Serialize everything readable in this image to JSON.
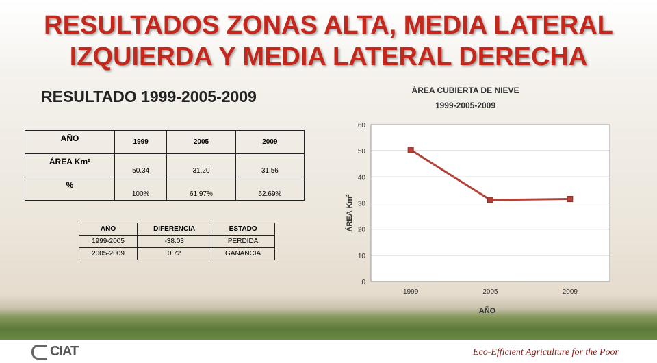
{
  "slide": {
    "title": "RESULTADOS ZONAS ALTA, MEDIA LATERAL IZQUIERDA Y MEDIA LATERAL DERECHA",
    "subtitle": "RESULTADO 1999-2005-2009"
  },
  "table1": {
    "header": [
      "AÑO",
      "1999",
      "2005",
      "2009"
    ],
    "area_label": "ÁREA Km²",
    "area_values": [
      "50.34",
      "31.20",
      "31.56"
    ],
    "pct_label": "%",
    "pct_values": [
      "100%",
      "61.97%",
      "62.69%"
    ]
  },
  "table2": {
    "headers": [
      "AÑO",
      "DIFERENCIA",
      "ESTADO"
    ],
    "rows": [
      [
        "1999-2005",
        "-38.03",
        "PERDIDA"
      ],
      [
        "2005-2009",
        "0.72",
        "GANANCIA"
      ]
    ]
  },
  "footer": {
    "logo": "CIAT",
    "tagline": "Eco-Efficient Agriculture for the Poor"
  },
  "colors": {
    "title": "#c4281c",
    "series": "#b0433a"
  },
  "chart_data": {
    "type": "line",
    "title_line1": "ÁREA CUBIERTA DE NIEVE",
    "title_line2": "1999-2005-2009",
    "xlabel": "AÑO",
    "ylabel": "ÁREA Km²",
    "categories": [
      "1999",
      "2005",
      "2009"
    ],
    "values": [
      50.34,
      31.2,
      31.56
    ],
    "ylim": [
      0,
      60
    ],
    "yticks": [
      0,
      10,
      20,
      30,
      40,
      50,
      60
    ],
    "grid": true
  }
}
